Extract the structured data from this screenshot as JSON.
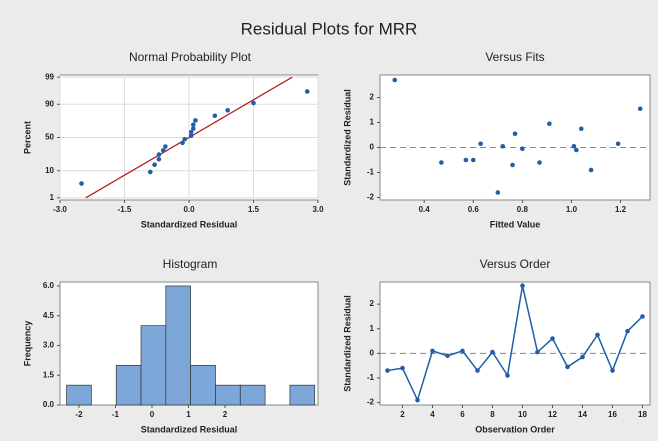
{
  "title": "Residual Plots for MRR",
  "chart_data": [
    {
      "type": "probability",
      "title": "Normal Probability Plot",
      "xlabel": "Standardized Residual",
      "ylabel": "Percent",
      "yscale": "probability",
      "grid": true,
      "color": "#1f5fa8",
      "x": [
        -2.5,
        -0.9,
        -0.8,
        -0.7,
        -0.7,
        -0.6,
        -0.55,
        -0.15,
        -0.1,
        0.05,
        0.05,
        0.1,
        0.1,
        0.15,
        0.6,
        0.9,
        1.5,
        2.75
      ],
      "y": [
        3.8,
        9.2,
        14.7,
        20.1,
        25.5,
        31,
        36.4,
        41.8,
        47.3,
        52.7,
        58.2,
        63.6,
        69,
        74.5,
        79.9,
        85.3,
        90.8,
        96.2
      ],
      "fit_line": {
        "x": [
          -2.4,
          2.4
        ],
        "y": [
          1,
          99
        ],
        "color": "#b22222"
      },
      "xlim": [
        -3.0,
        3.0
      ],
      "ylim": [
        0.8,
        99.2
      ],
      "xticks": [
        {
          "value": -3,
          "label": "-3.0"
        },
        -1.5,
        {
          "value": 0,
          "label": "0.0"
        },
        1.5,
        {
          "value": 3,
          "label": "3.0"
        }
      ],
      "yticks": [
        1,
        10,
        50,
        90,
        99
      ]
    },
    {
      "type": "scatter",
      "title": "Versus Fits",
      "xlabel": "Fitted Value",
      "ylabel": "Standardized Residual",
      "color": "#1f5fa8",
      "reference_line": 0,
      "x": [
        0.28,
        0.47,
        0.57,
        0.6,
        0.63,
        0.7,
        0.72,
        0.76,
        0.77,
        0.8,
        0.87,
        0.91,
        1.01,
        1.02,
        1.04,
        1.08,
        1.19,
        1.28
      ],
      "y": [
        2.7,
        -0.6,
        -0.5,
        -0.5,
        0.15,
        -1.8,
        0.05,
        -0.7,
        0.55,
        -0.05,
        -0.6,
        0.95,
        0.05,
        -0.1,
        0.75,
        -0.9,
        0.15,
        1.55
      ],
      "xlim": [
        0.22,
        1.32
      ],
      "ylim": [
        -2.1,
        2.9
      ],
      "xticks": [
        0.4,
        0.6,
        0.8,
        {
          "value": 1,
          "label": "1.0"
        },
        1.2
      ],
      "yticks": [
        -2,
        -1,
        0,
        1,
        2
      ]
    },
    {
      "type": "histogram",
      "title": "Histogram",
      "xlabel": "Standardized Residual",
      "ylabel": "Frequency",
      "color": "#7da7d9",
      "bins": [
        -2.34,
        -1.66,
        -0.98,
        -0.3,
        0.38,
        1.06,
        1.74,
        2.42,
        3.1,
        3.78,
        4.46
      ],
      "values": [
        1,
        0,
        2,
        4,
        6,
        2,
        1,
        1,
        0,
        1
      ],
      "xlim": [
        -2.52,
        4.55
      ],
      "ylim": [
        0,
        6.2
      ],
      "xticks": [
        -2,
        -1,
        0,
        1,
        2
      ],
      "yticks": [
        {
          "value": 0,
          "label": "0.0"
        },
        1.5,
        {
          "value": 3,
          "label": "3.0"
        },
        4.5,
        {
          "value": 6,
          "label": "6.0"
        }
      ]
    },
    {
      "type": "line",
      "title": "Versus Order",
      "xlabel": "Observation Order",
      "ylabel": "Standardized Residual",
      "color": "#1f5fa8",
      "reference_line": 0,
      "x": [
        1,
        2,
        3,
        4,
        5,
        6,
        7,
        8,
        9,
        10,
        11,
        12,
        13,
        14,
        15,
        16,
        17,
        18
      ],
      "y": [
        -0.7,
        -0.6,
        -1.9,
        0.1,
        -0.1,
        0.1,
        -0.7,
        0.05,
        -0.9,
        2.75,
        0.05,
        0.6,
        -0.55,
        -0.15,
        0.75,
        -0.7,
        0.9,
        1.5
      ],
      "xlim": [
        0.5,
        18.5
      ],
      "ylim": [
        -2.1,
        2.9
      ],
      "xticks": [
        2,
        4,
        6,
        8,
        10,
        12,
        14,
        16,
        18
      ],
      "yticks": [
        -2,
        -1,
        0,
        1,
        2
      ]
    }
  ]
}
